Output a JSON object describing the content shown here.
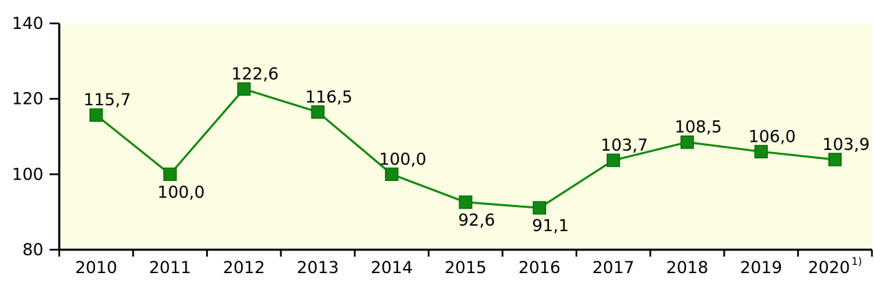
{
  "chart_data": {
    "type": "line",
    "title": "",
    "xlabel": "",
    "ylabel": "",
    "categories": [
      "2010",
      "2011",
      "2012",
      "2013",
      "2014",
      "2015",
      "2016",
      "2017",
      "2018",
      "2019",
      "2020"
    ],
    "last_category_superscript": "1)",
    "values": [
      115.7,
      100.0,
      122.6,
      116.5,
      100.0,
      92.6,
      91.1,
      103.7,
      108.5,
      106.0,
      103.9
    ],
    "data_labels": [
      "115,7",
      "100,0",
      "122,6",
      "116,5",
      "100,0",
      "92,6",
      "91,1",
      "103,7",
      "108,5",
      "106,0",
      "103,9"
    ],
    "data_label_position": [
      "above",
      "below",
      "above",
      "above",
      "above",
      "below",
      "below",
      "above",
      "above",
      "above",
      "above"
    ],
    "y_ticks": [
      "80",
      "100",
      "120",
      "140"
    ],
    "ylim": [
      80,
      140
    ],
    "grid": false,
    "legend": false,
    "marker": "square",
    "colors": {
      "line": "#0f8a10",
      "marker_fill": "#128812",
      "marker_border": "#0a6e0a",
      "plot_background": "#fdfde3",
      "axis": "#000000",
      "text": "#000000"
    }
  }
}
